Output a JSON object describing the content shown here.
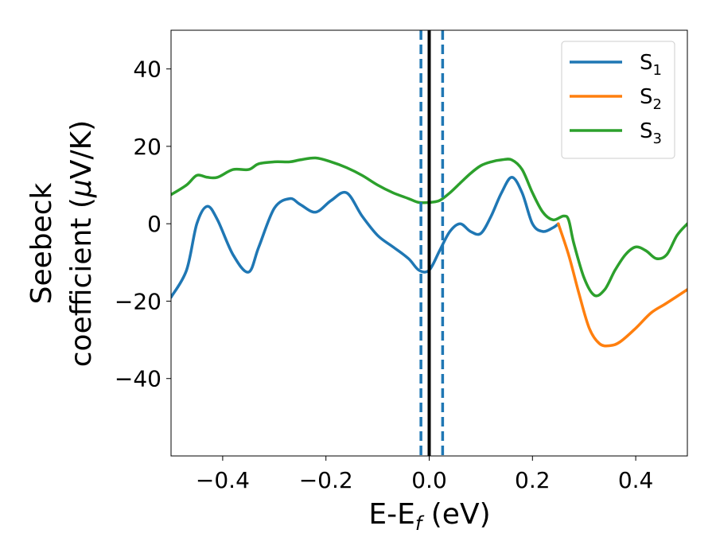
{
  "chart_data": {
    "type": "line",
    "xlabel_main": "E-E",
    "xlabel_sub": "f",
    "xlabel_unit": " (eV)",
    "ylabel_line1": "Seebeck",
    "ylabel_line2_a": "coefficient  (",
    "ylabel_line2_mu": "μ",
    "ylabel_line2_b": "V/K)",
    "xlim": [
      -0.5,
      0.5
    ],
    "ylim": [
      -60,
      50
    ],
    "xticks": [
      -0.4,
      -0.2,
      0.0,
      0.2,
      0.4
    ],
    "xtick_labels": [
      "−0.4",
      "−0.2",
      "0.0",
      "0.2",
      "0.4"
    ],
    "yticks": [
      -40,
      -20,
      0,
      20,
      40
    ],
    "ytick_labels": [
      "−40",
      "−20",
      "0",
      "20",
      "40"
    ],
    "legend_position": "top-right",
    "series": [
      {
        "name": "S",
        "subscript": "1",
        "color": "#1f77b4",
        "x": [
          -0.5,
          -0.47,
          -0.45,
          -0.43,
          -0.41,
          -0.38,
          -0.35,
          -0.33,
          -0.3,
          -0.27,
          -0.25,
          -0.22,
          -0.19,
          -0.16,
          -0.13,
          -0.1,
          -0.07,
          -0.04,
          -0.02,
          0.0,
          0.02,
          0.04,
          0.06,
          0.08,
          0.1,
          0.12,
          0.14,
          0.16,
          0.18,
          0.2,
          0.22,
          0.24,
          0.25
        ],
        "y": [
          -19,
          -12,
          0,
          4.5,
          1,
          -8,
          -12.5,
          -6,
          4,
          6.5,
          5,
          3,
          6,
          8,
          2,
          -3,
          -6,
          -9,
          -12,
          -12,
          -7,
          -2,
          0,
          -2,
          -2.5,
          2,
          8,
          12,
          8,
          0,
          -2,
          -1,
          0
        ]
      },
      {
        "name": "S",
        "subscript": "2",
        "color": "#ff7f0e",
        "x": [
          0.25,
          0.27,
          0.29,
          0.31,
          0.33,
          0.35,
          0.37,
          0.4,
          0.43,
          0.46,
          0.5
        ],
        "y": [
          0,
          -8,
          -18,
          -27,
          -31,
          -31.5,
          -30.5,
          -27,
          -23,
          -20.5,
          -17
        ]
      },
      {
        "name": "S",
        "subscript": "3",
        "color": "#2ca02c",
        "x": [
          -0.5,
          -0.47,
          -0.45,
          -0.43,
          -0.41,
          -0.38,
          -0.35,
          -0.33,
          -0.3,
          -0.27,
          -0.25,
          -0.22,
          -0.19,
          -0.16,
          -0.13,
          -0.1,
          -0.07,
          -0.04,
          -0.02,
          0.0,
          0.02,
          0.04,
          0.06,
          0.08,
          0.1,
          0.12,
          0.14,
          0.16,
          0.18,
          0.2,
          0.22,
          0.24,
          0.26,
          0.27,
          0.28,
          0.3,
          0.32,
          0.34,
          0.36,
          0.38,
          0.4,
          0.42,
          0.44,
          0.46,
          0.48,
          0.5
        ],
        "y": [
          7.5,
          10,
          12.5,
          12,
          12,
          14,
          14,
          15.5,
          16,
          16,
          16.5,
          17,
          16,
          14.5,
          12.5,
          10,
          8,
          6.5,
          5.5,
          5.5,
          6,
          8,
          10.5,
          13,
          15,
          16,
          16.5,
          16.5,
          14,
          8,
          3,
          1,
          2,
          1,
          -5,
          -14,
          -18.5,
          -17,
          -12,
          -8,
          -6,
          -7,
          -9,
          -8,
          -3,
          0
        ]
      }
    ],
    "vlines": [
      {
        "x": 0.0,
        "color": "#000000",
        "style": "solid"
      },
      {
        "x": -0.016,
        "color": "#1f77b4",
        "style": "dashed"
      },
      {
        "x": 0.0,
        "color": "#1f77b4",
        "style": "dashed"
      },
      {
        "x": 0.026,
        "color": "#1f77b4",
        "style": "dashed"
      }
    ]
  }
}
